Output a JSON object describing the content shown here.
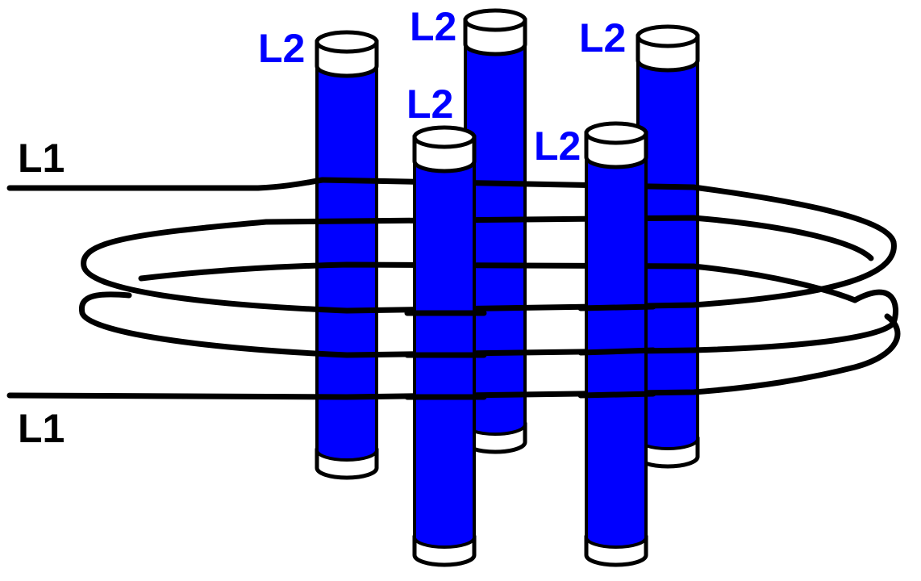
{
  "diagram": {
    "primary_coil": {
      "top_label": "L1",
      "bottom_label": "L1"
    },
    "secondary_coils": [
      {
        "label": "L2"
      },
      {
        "label": "L2"
      },
      {
        "label": "L2"
      },
      {
        "label": "L2"
      },
      {
        "label": "L2"
      }
    ]
  },
  "colors": {
    "primary_label": "#000000",
    "secondary_label": "#0000ff",
    "rod_fill": "#0000ff",
    "rod_cap": "#ffffff",
    "wire": "#000000",
    "background": "#ffffff"
  }
}
